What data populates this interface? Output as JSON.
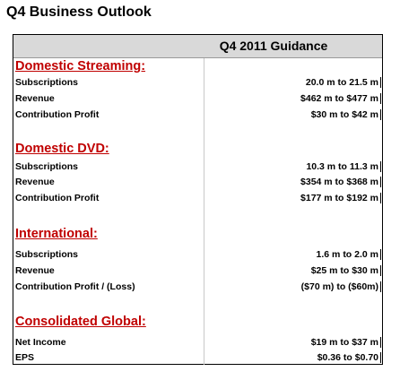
{
  "page_title": "Q4 Business Outlook",
  "table": {
    "header": "Q4 2011 Guidance",
    "sections": [
      {
        "title": "Domestic Streaming:",
        "rows": [
          {
            "label": "Subscriptions",
            "value": "20.0 m to 21.5 m"
          },
          {
            "label": "Revenue",
            "value": "$462 m to $477 m"
          },
          {
            "label": "Contribution Profit",
            "value": "$30 m to $42 m"
          }
        ]
      },
      {
        "title": "Domestic DVD:",
        "rows": [
          {
            "label": "Subscriptions",
            "value": "10.3 m to 11.3 m"
          },
          {
            "label": "Revenue",
            "value": "$354 m to $368 m"
          },
          {
            "label": "Contribution Profit",
            "value": "$177 m to $192 m"
          }
        ]
      },
      {
        "title": "International:",
        "rows": [
          {
            "label": "Subscriptions",
            "value": "1.6 m to 2.0 m"
          },
          {
            "label": "Revenue",
            "value": "$25 m to $30 m"
          },
          {
            "label": "Contribution Profit / (Loss)",
            "value": "($70 m) to ($60m)"
          }
        ]
      },
      {
        "title": "Consolidated Global:",
        "rows": [
          {
            "label": "Net Income",
            "value": "$19 m to $37 m"
          },
          {
            "label": "EPS",
            "value": "$0.36 to $0.70"
          }
        ]
      }
    ]
  }
}
